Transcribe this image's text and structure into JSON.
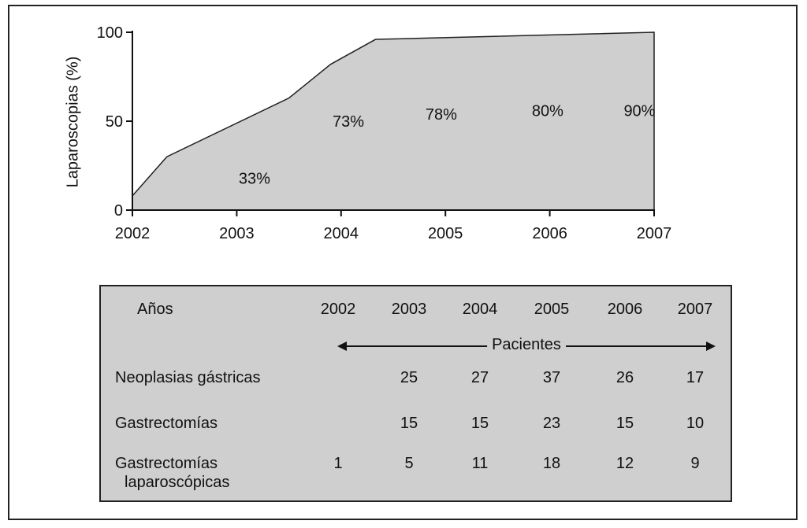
{
  "chart_data": {
    "type": "area",
    "x": [
      2002,
      2002.33,
      2003.5,
      2003.9,
      2004.33,
      2007
    ],
    "y": [
      8,
      30,
      63,
      82,
      96,
      100
    ],
    "xlim": [
      2002,
      2007
    ],
    "ylim": [
      0,
      100
    ],
    "xticks": [
      "2002",
      "2003",
      "2004",
      "2005",
      "2006",
      "2007"
    ],
    "yticks": [
      "0",
      "50",
      "100"
    ],
    "ylabel": "Laparoscopias (%)",
    "xlabel": "",
    "title": "",
    "annotations": [
      {
        "text": "33%",
        "x": 2003.17,
        "y": 18
      },
      {
        "text": "73%",
        "x": 2004.07,
        "y": 50
      },
      {
        "text": "78%",
        "x": 2004.96,
        "y": 54
      },
      {
        "text": "80%",
        "x": 2005.98,
        "y": 56
      },
      {
        "text": "90%",
        "x": 2006.86,
        "y": 56
      }
    ],
    "fill_color": "#cfcfcf",
    "line_color": "#222222"
  },
  "table": {
    "header_label": "Años",
    "years": [
      "2002",
      "2003",
      "2004",
      "2005",
      "2006",
      "2007"
    ],
    "span_label": "Pacientes",
    "rows": [
      {
        "label": "Neoplasias gástricas",
        "values": [
          "",
          "25",
          "27",
          "37",
          "26",
          "17"
        ]
      },
      {
        "label": "Gastrectomías",
        "values": [
          "",
          "15",
          "15",
          "23",
          "15",
          "10"
        ]
      },
      {
        "label": "Gastrectomías",
        "label2": "laparoscópicas",
        "values": [
          "1",
          "5",
          "11",
          "18",
          "12",
          "9"
        ]
      }
    ]
  }
}
